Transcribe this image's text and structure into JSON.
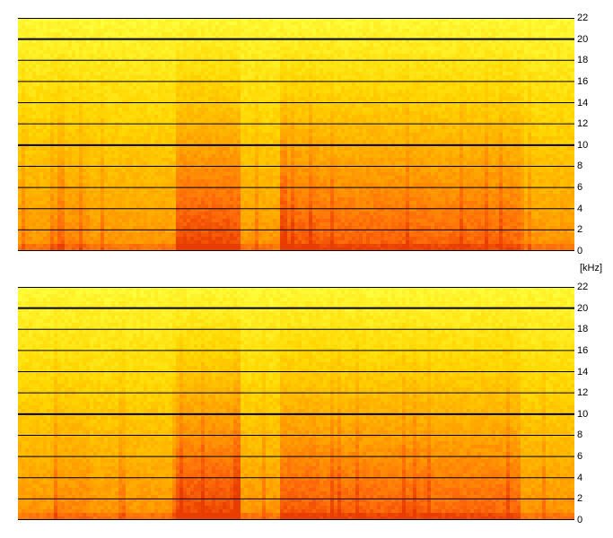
{
  "chart_data": {
    "type": "heatmap",
    "description_units": "frequency in kHz",
    "unit_label": "[kHz]",
    "y_ticks": [
      0,
      2,
      4,
      6,
      8,
      10,
      12,
      14,
      16,
      18,
      20,
      22
    ],
    "ylim": [
      0,
      22
    ],
    "major_lines": [
      10,
      20
    ],
    "colormap": [
      "#ffff33",
      "#ffcc00",
      "#ff9900",
      "#ff6600",
      "#e63300"
    ],
    "panels": [
      {
        "id": "top",
        "bands": [
          {
            "from": 0,
            "to": 22,
            "intensity": "low-to-high toward 0 kHz"
          }
        ]
      },
      {
        "id": "bottom",
        "bands": [
          {
            "from": 0,
            "to": 22,
            "intensity": "low-to-high toward 0 kHz"
          }
        ]
      }
    ]
  }
}
